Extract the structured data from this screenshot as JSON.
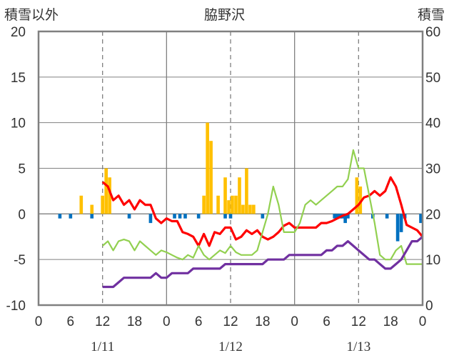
{
  "header": {
    "left_axis_title": "積雪以外",
    "station": "脇野沢",
    "right_axis_title": "積雪"
  },
  "colors": {
    "temperature": "#ff0000",
    "humidity_like": "#92d050",
    "snow_depth": "#7030a0",
    "precip": "#ffc000",
    "negative_bars": "#0070c0",
    "grid": "#808080"
  },
  "chart_data": {
    "type": "bar",
    "x_unit": "hours from 1/11 00:00",
    "xlim": [
      0,
      72
    ],
    "x_ticks": [
      {
        "h": 0,
        "label": "0"
      },
      {
        "h": 6,
        "label": "6"
      },
      {
        "h": 12,
        "label": "12"
      },
      {
        "h": 18,
        "label": "18"
      },
      {
        "h": 24,
        "label": "0"
      },
      {
        "h": 30,
        "label": "6"
      },
      {
        "h": 36,
        "label": "12"
      },
      {
        "h": 42,
        "label": "18"
      },
      {
        "h": 48,
        "label": "0"
      },
      {
        "h": 54,
        "label": "6"
      },
      {
        "h": 60,
        "label": "12"
      },
      {
        "h": 66,
        "label": "18"
      },
      {
        "h": 72,
        "label": "0"
      }
    ],
    "dates": [
      {
        "h": 12,
        "label": "1/11"
      },
      {
        "h": 36,
        "label": "1/12"
      },
      {
        "h": 60,
        "label": "1/13"
      }
    ],
    "ylim_left": [
      -10,
      20
    ],
    "y_ticks_left": [
      -10,
      -5,
      0,
      5,
      10,
      15,
      20
    ],
    "ylim_right": [
      0,
      60
    ],
    "y_ticks_right": [
      0,
      10,
      20,
      30,
      40,
      50,
      60
    ],
    "series": [
      {
        "axis": "left",
        "kind": "bar",
        "color": "#ffc000",
        "x": [
          8,
          10,
          12,
          12.67,
          13.33,
          31,
          31.67,
          32.33,
          33.67,
          35,
          35.67,
          36.33,
          37,
          37.67,
          38.33,
          39,
          39.67,
          40.33,
          59.67,
          60.33
        ],
        "values": [
          2,
          1,
          2,
          5,
          4,
          2,
          10,
          8,
          2,
          4,
          1.5,
          2,
          2,
          4,
          1,
          5,
          1,
          1,
          4,
          3
        ]
      },
      {
        "axis": "left",
        "kind": "bar",
        "color": "#0070c0",
        "x": [
          4,
          6,
          10,
          17,
          21,
          25.5,
          26.5,
          27.5,
          30,
          35,
          36,
          42,
          55.5,
          56,
          56.5,
          57,
          57.5,
          58,
          62.67,
          65.33,
          67.33,
          68,
          68.67,
          71.67
        ],
        "values": [
          -0.5,
          -0.5,
          -0.5,
          -0.5,
          -1,
          -0.5,
          -0.5,
          -0.5,
          -0.5,
          -0.5,
          -0.5,
          -0.5,
          -0.5,
          -0.5,
          -0.5,
          -0.5,
          -1,
          -0.5,
          -0.5,
          -0.5,
          -3,
          -2,
          -0.5,
          -1
        ]
      },
      {
        "axis": "left",
        "kind": "line",
        "color": "#ff0000",
        "x": [
          12,
          13,
          14,
          15,
          16,
          17,
          18,
          19,
          20,
          21,
          22,
          23,
          24,
          25,
          26,
          27,
          28,
          29,
          30,
          31,
          32,
          33,
          34,
          35,
          36,
          37,
          38,
          39,
          40,
          41,
          42,
          43,
          44,
          45,
          46,
          47,
          48,
          49,
          50,
          51,
          52,
          53,
          54,
          55,
          56,
          57,
          58,
          59,
          60,
          61,
          62,
          63,
          64,
          65,
          66,
          67,
          68,
          69,
          70,
          71,
          72
        ],
        "values": [
          3.5,
          3,
          1.5,
          2,
          1,
          1.5,
          0.5,
          1.5,
          1,
          1,
          -0.5,
          -1,
          -0.5,
          -0.8,
          -0.8,
          -2,
          -2.2,
          -2.5,
          -3.5,
          -2.2,
          -3.5,
          -2,
          -2.2,
          -1.5,
          -1.5,
          -2.8,
          -2.5,
          -1.8,
          -2.2,
          -1.8,
          -2.5,
          -2.8,
          -2.5,
          -2,
          -1.3,
          -1,
          -1.5,
          -1.5,
          -1.5,
          -1.5,
          -1.5,
          -1,
          -1,
          -0.8,
          -0.5,
          -0.2,
          0,
          0.5,
          1,
          1.8,
          2,
          2.5,
          2,
          2.5,
          4,
          3,
          1,
          -1.2,
          -1.5,
          -1.8,
          -2.5
        ]
      },
      {
        "axis": "left",
        "kind": "line",
        "color": "#92d050",
        "x": [
          12,
          13,
          14,
          15,
          16,
          17,
          18,
          19,
          20,
          21,
          22,
          23,
          24,
          25,
          26,
          27,
          28,
          29,
          30,
          31,
          32,
          33,
          34,
          35,
          36,
          37,
          38,
          39,
          40,
          41,
          42,
          43,
          44,
          45,
          46,
          47,
          48,
          49,
          50,
          51,
          52,
          53,
          54,
          55,
          56,
          57,
          58,
          59,
          60,
          61,
          62,
          63,
          64,
          65,
          66,
          67,
          68,
          69,
          70,
          71,
          72
        ],
        "values": [
          -3.5,
          -3,
          -4,
          -3,
          -2.8,
          -3,
          -4,
          -3,
          -3.5,
          -4,
          -4.5,
          -4,
          -4.2,
          -4.5,
          -4.8,
          -5,
          -4.5,
          -4.8,
          -3.5,
          -4.5,
          -5,
          -4.5,
          -4,
          -4.3,
          -3.5,
          -4.2,
          -4.5,
          -4.5,
          -4.5,
          -4,
          -2,
          0,
          3,
          1,
          -2,
          -2,
          -2,
          -1,
          1,
          1.5,
          1,
          1.5,
          2,
          2.5,
          3,
          3,
          3.8,
          7,
          5,
          5,
          2,
          -1,
          -4.5,
          -5,
          -5,
          -4,
          -3.5,
          -5.5,
          -5.5,
          -5.5,
          -5.5
        ]
      },
      {
        "axis": "right",
        "kind": "line",
        "color": "#7030a0",
        "x": [
          12,
          13,
          14,
          15,
          16,
          17,
          18,
          19,
          20,
          21,
          22,
          23,
          24,
          25,
          26,
          27,
          28,
          29,
          30,
          31,
          32,
          33,
          34,
          35,
          36,
          37,
          38,
          39,
          40,
          41,
          42,
          43,
          44,
          45,
          46,
          47,
          48,
          49,
          50,
          51,
          52,
          53,
          54,
          55,
          56,
          57,
          58,
          59,
          60,
          61,
          62,
          63,
          64,
          65,
          66,
          67,
          68,
          69,
          70,
          71,
          72
        ],
        "values": [
          4,
          4,
          4,
          5,
          6,
          6,
          6,
          6,
          6,
          6,
          7,
          6,
          6,
          7,
          7,
          7,
          7,
          8,
          8,
          8,
          8,
          8,
          8,
          9,
          9,
          9,
          9,
          9,
          9,
          9,
          9,
          10,
          10,
          10,
          10,
          11,
          11,
          11,
          11,
          11,
          11,
          11,
          12,
          12,
          13,
          13,
          14,
          13,
          12,
          11,
          10,
          10,
          9,
          8,
          8,
          9,
          10,
          12,
          14,
          14,
          15
        ]
      }
    ]
  }
}
